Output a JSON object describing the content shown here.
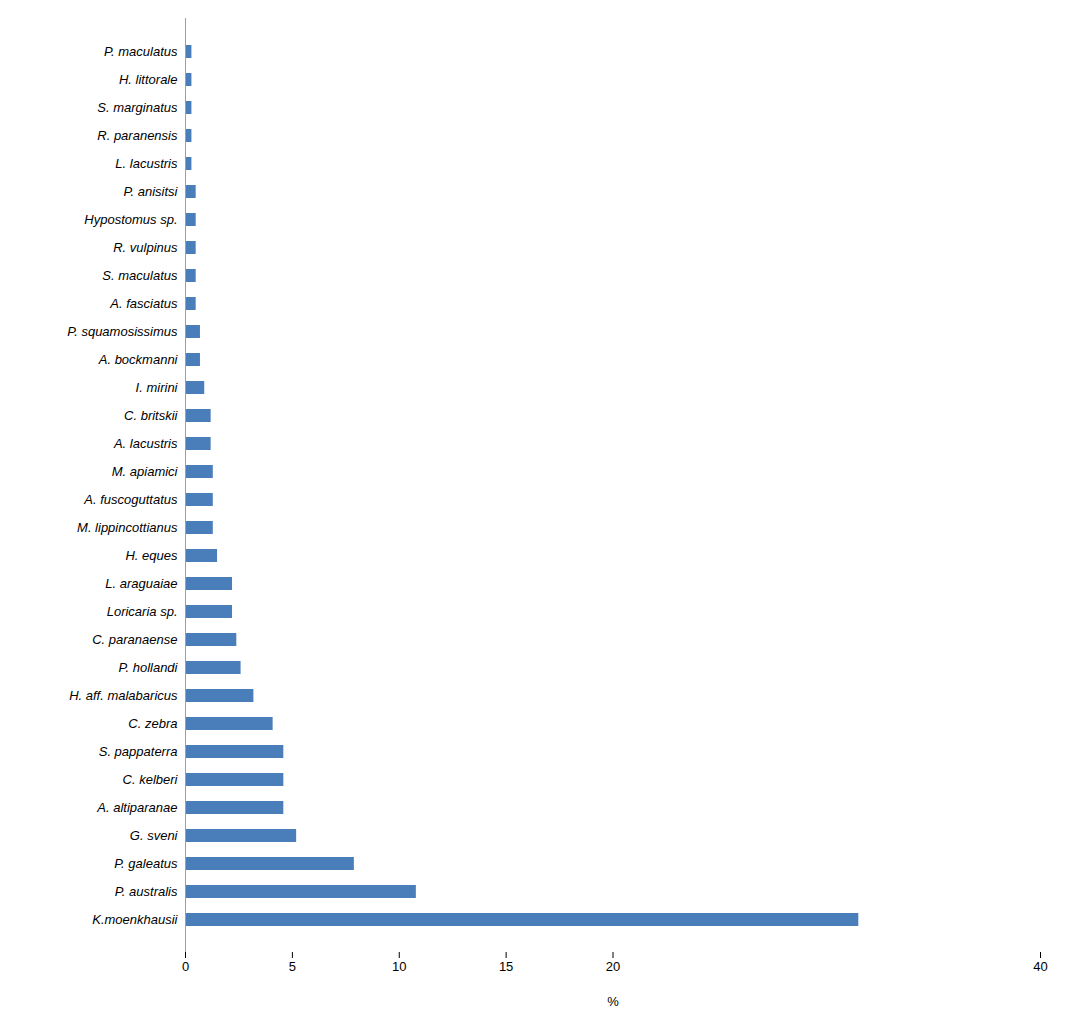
{
  "chart_data": {
    "type": "bar",
    "orientation": "horizontal",
    "categories": [
      "P. maculatus",
      "H. littorale",
      "S. marginatus",
      "R. paranensis",
      "L. lacustris",
      "P. anisitsi",
      "Hypostomus sp.",
      "R. vulpinus",
      "S. maculatus",
      "A. fasciatus",
      "P. squamosissimus",
      "A. bockmanni",
      "I. mirini",
      "C. britskii",
      "A. lacustris",
      "M. apiamici",
      "A. fuscoguttatus",
      "M. lippincottianus",
      "H. eques",
      "L. araguaiae",
      "Loricaria sp.",
      "C. paranaense",
      "P. hollandi",
      "H. aff. malabaricus",
      "C. zebra",
      "S. pappaterra",
      "C. kelberi",
      "A. altiparanae",
      "G. sveni",
      "P. galeatus",
      "P. australis",
      "K.moenkhausii"
    ],
    "values": [
      0.3,
      0.3,
      0.3,
      0.3,
      0.3,
      0.5,
      0.5,
      0.5,
      0.5,
      0.5,
      0.7,
      0.7,
      0.9,
      1.2,
      1.2,
      1.3,
      1.3,
      1.3,
      1.5,
      2.2,
      2.2,
      2.4,
      2.6,
      3.2,
      4.1,
      4.6,
      4.6,
      4.6,
      5.2,
      7.9,
      10.8,
      31.5
    ],
    "color": "#4a7ebb",
    "x_label": "%",
    "xlim": [
      0,
      40
    ],
    "xticks": [
      0,
      5,
      10,
      15,
      20,
      40
    ],
    "grid": false
  }
}
